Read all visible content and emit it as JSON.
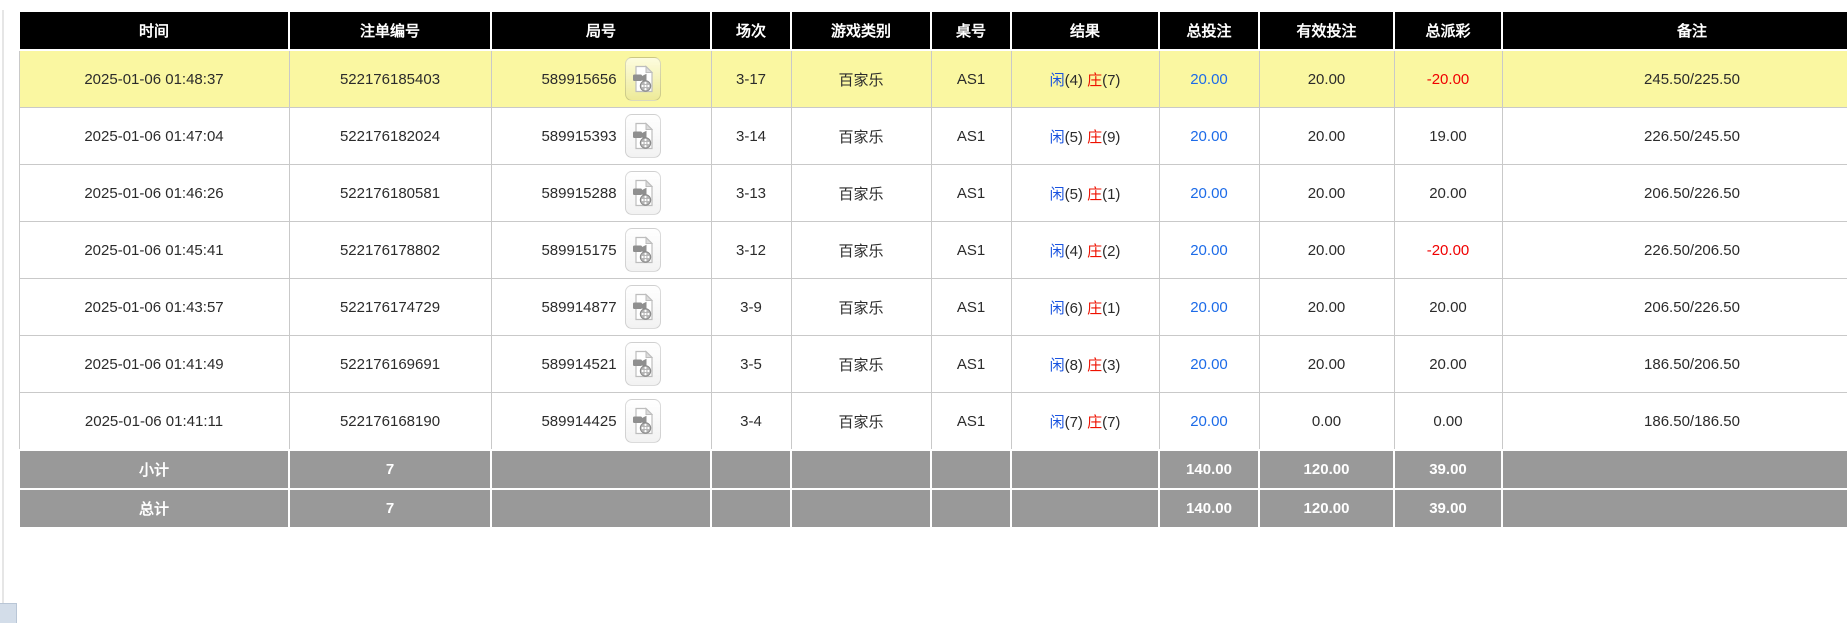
{
  "colors": {
    "header_bg": "#000000",
    "highlight_row_bg": "#faf7a1",
    "summary_row_bg": "#999999",
    "accent_blue": "#1c6be8",
    "accent_red": "#ee1100",
    "negative_red": "#f00000"
  },
  "table": {
    "columns": [
      {
        "key": "time",
        "label": "时间"
      },
      {
        "key": "bet_id",
        "label": "注单编号"
      },
      {
        "key": "round_id",
        "label": "局号"
      },
      {
        "key": "session",
        "label": "场次"
      },
      {
        "key": "game",
        "label": "游戏类别"
      },
      {
        "key": "table_id",
        "label": "桌号"
      },
      {
        "key": "result",
        "label": "结果"
      },
      {
        "key": "total_bet",
        "label": "总投注"
      },
      {
        "key": "valid_bet",
        "label": "有效投注"
      },
      {
        "key": "payout",
        "label": "总派彩"
      },
      {
        "key": "remark",
        "label": "备注"
      }
    ],
    "result_labels": {
      "player": "闲",
      "banker": "庄"
    },
    "icons": {
      "round_video": "video-replay-icon"
    },
    "rows": [
      {
        "time": "2025-01-06 01:48:37",
        "bet_id": "522176185403",
        "round_id": "589915656",
        "session": "3-17",
        "game": "百家乐",
        "table_id": "AS1",
        "player": "4",
        "banker": "7",
        "total_bet": "20.00",
        "valid_bet": "20.00",
        "payout": "-20.00",
        "remark": "245.50/225.50",
        "highlighted": true
      },
      {
        "time": "2025-01-06 01:47:04",
        "bet_id": "522176182024",
        "round_id": "589915393",
        "session": "3-14",
        "game": "百家乐",
        "table_id": "AS1",
        "player": "5",
        "banker": "9",
        "total_bet": "20.00",
        "valid_bet": "20.00",
        "payout": "19.00",
        "remark": "226.50/245.50",
        "highlighted": false
      },
      {
        "time": "2025-01-06 01:46:26",
        "bet_id": "522176180581",
        "round_id": "589915288",
        "session": "3-13",
        "game": "百家乐",
        "table_id": "AS1",
        "player": "5",
        "banker": "1",
        "total_bet": "20.00",
        "valid_bet": "20.00",
        "payout": "20.00",
        "remark": "206.50/226.50",
        "highlighted": false
      },
      {
        "time": "2025-01-06 01:45:41",
        "bet_id": "522176178802",
        "round_id": "589915175",
        "session": "3-12",
        "game": "百家乐",
        "table_id": "AS1",
        "player": "4",
        "banker": "2",
        "total_bet": "20.00",
        "valid_bet": "20.00",
        "payout": "-20.00",
        "remark": "226.50/206.50",
        "highlighted": false
      },
      {
        "time": "2025-01-06 01:43:57",
        "bet_id": "522176174729",
        "round_id": "589914877",
        "session": "3-9",
        "game": "百家乐",
        "table_id": "AS1",
        "player": "6",
        "banker": "1",
        "total_bet": "20.00",
        "valid_bet": "20.00",
        "payout": "20.00",
        "remark": "206.50/226.50",
        "highlighted": false
      },
      {
        "time": "2025-01-06 01:41:49",
        "bet_id": "522176169691",
        "round_id": "589914521",
        "session": "3-5",
        "game": "百家乐",
        "table_id": "AS1",
        "player": "8",
        "banker": "3",
        "total_bet": "20.00",
        "valid_bet": "20.00",
        "payout": "20.00",
        "remark": "186.50/206.50",
        "highlighted": false
      },
      {
        "time": "2025-01-06 01:41:11",
        "bet_id": "522176168190",
        "round_id": "589914425",
        "session": "3-4",
        "game": "百家乐",
        "table_id": "AS1",
        "player": "7",
        "banker": "7",
        "total_bet": "20.00",
        "valid_bet": "0.00",
        "payout": "0.00",
        "remark": "186.50/186.50",
        "highlighted": false
      }
    ],
    "summary_rows": [
      {
        "label": "小计",
        "count": "7",
        "total_bet": "140.00",
        "valid_bet": "120.00",
        "payout": "39.00"
      },
      {
        "label": "总计",
        "count": "7",
        "total_bet": "140.00",
        "valid_bet": "120.00",
        "payout": "39.00"
      }
    ]
  }
}
